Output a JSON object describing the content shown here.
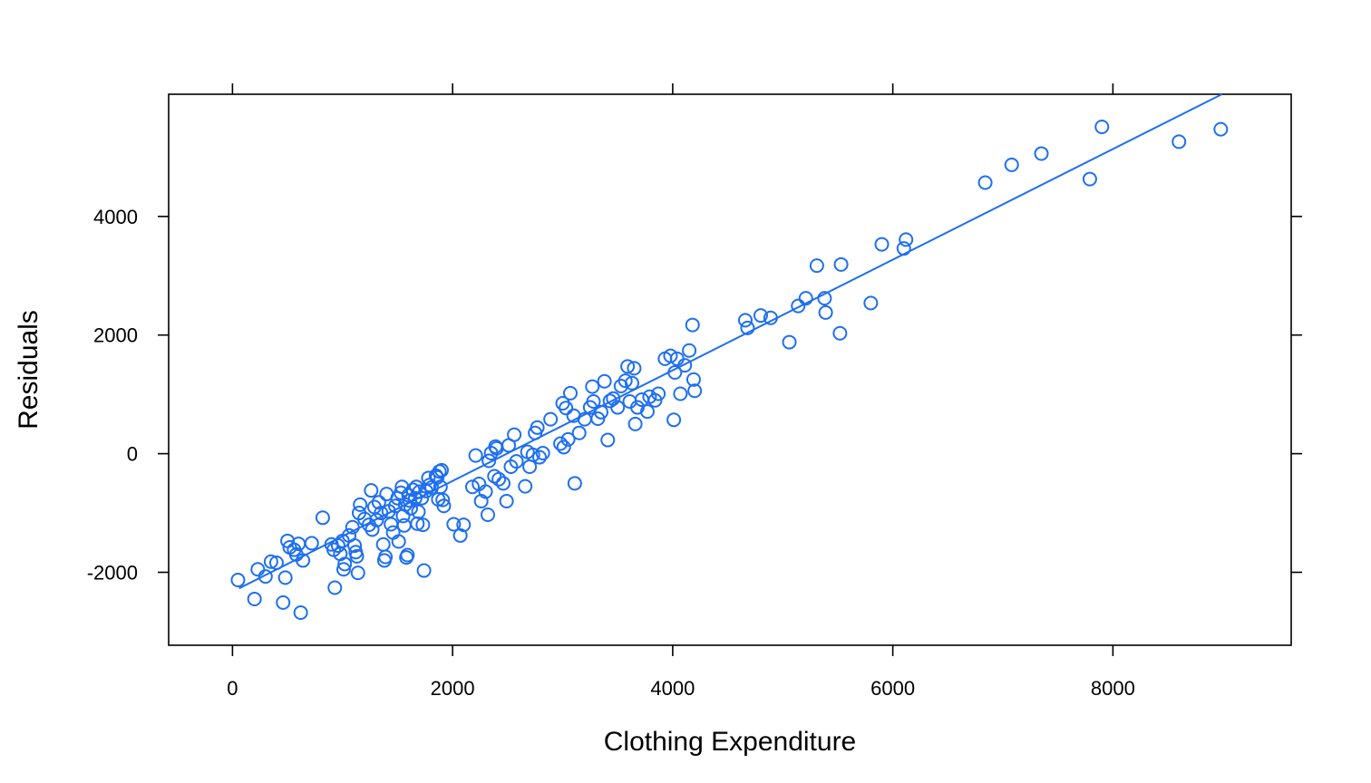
{
  "chart_data": {
    "type": "scatter",
    "title": "",
    "xlabel": "Clothing Expenditure",
    "ylabel": "Residuals",
    "xlim": [
      -580,
      9620
    ],
    "ylim": [
      -3230,
      6060
    ],
    "xticks": [
      0,
      2000,
      4000,
      6000,
      8000
    ],
    "yticks": [
      -2000,
      0,
      2000,
      4000
    ],
    "xtick_labels": [
      "0",
      "2000",
      "4000",
      "6000",
      "8000"
    ],
    "ytick_labels": [
      "-2000",
      "0",
      "2000",
      "4000"
    ],
    "grid": false,
    "legend": "none",
    "point_color": "#1e6ff1",
    "line_color": "#1e6ff1",
    "fit_line": {
      "x": [
        60,
        8990
      ],
      "y": [
        -2270,
        6060
      ]
    },
    "points": [
      [
        50,
        -2130
      ],
      [
        200,
        -2450
      ],
      [
        230,
        -1950
      ],
      [
        300,
        -2070
      ],
      [
        350,
        -1820
      ],
      [
        400,
        -1840
      ],
      [
        460,
        -2510
      ],
      [
        480,
        -2090
      ],
      [
        500,
        -1470
      ],
      [
        520,
        -1580
      ],
      [
        560,
        -1620
      ],
      [
        580,
        -1700
      ],
      [
        600,
        -1520
      ],
      [
        620,
        -2680
      ],
      [
        640,
        -1800
      ],
      [
        720,
        -1510
      ],
      [
        820,
        -1080
      ],
      [
        900,
        -1530
      ],
      [
        920,
        -1620
      ],
      [
        930,
        -2260
      ],
      [
        960,
        -1550
      ],
      [
        980,
        -1690
      ],
      [
        1000,
        -1470
      ],
      [
        1010,
        -1950
      ],
      [
        1020,
        -1860
      ],
      [
        1060,
        -1380
      ],
      [
        1090,
        -1240
      ],
      [
        1110,
        -1550
      ],
      [
        1120,
        -1660
      ],
      [
        1130,
        -1730
      ],
      [
        1140,
        -2010
      ],
      [
        1150,
        -1000
      ],
      [
        1160,
        -860
      ],
      [
        1200,
        -1100
      ],
      [
        1240,
        -1200
      ],
      [
        1260,
        -620
      ],
      [
        1270,
        -1280
      ],
      [
        1290,
        -900
      ],
      [
        1310,
        -1120
      ],
      [
        1330,
        -820
      ],
      [
        1350,
        -1000
      ],
      [
        1370,
        -1530
      ],
      [
        1380,
        -1800
      ],
      [
        1390,
        -1740
      ],
      [
        1400,
        -680
      ],
      [
        1420,
        -970
      ],
      [
        1440,
        -1190
      ],
      [
        1460,
        -1330
      ],
      [
        1480,
        -880
      ],
      [
        1500,
        -750
      ],
      [
        1510,
        -1480
      ],
      [
        1530,
        -660
      ],
      [
        1540,
        -560
      ],
      [
        1550,
        -1050
      ],
      [
        1560,
        -1210
      ],
      [
        1570,
        -860
      ],
      [
        1580,
        -1750
      ],
      [
        1590,
        -1710
      ],
      [
        1600,
        -700
      ],
      [
        1610,
        -790
      ],
      [
        1620,
        -920
      ],
      [
        1640,
        -610
      ],
      [
        1660,
        -750
      ],
      [
        1670,
        -560
      ],
      [
        1680,
        -1180
      ],
      [
        1690,
        -980
      ],
      [
        1700,
        -640
      ],
      [
        1720,
        -750
      ],
      [
        1730,
        -1200
      ],
      [
        1740,
        -1970
      ],
      [
        1760,
        -630
      ],
      [
        1780,
        -410
      ],
      [
        1790,
        -530
      ],
      [
        1810,
        -570
      ],
      [
        1850,
        -370
      ],
      [
        1860,
        -400
      ],
      [
        1870,
        -770
      ],
      [
        1880,
        -300
      ],
      [
        1890,
        -560
      ],
      [
        1900,
        -280
      ],
      [
        1910,
        -780
      ],
      [
        1920,
        -880
      ],
      [
        2010,
        -1190
      ],
      [
        2070,
        -1380
      ],
      [
        2100,
        -1200
      ],
      [
        2180,
        -560
      ],
      [
        2210,
        -30
      ],
      [
        2240,
        -510
      ],
      [
        2260,
        -800
      ],
      [
        2300,
        -640
      ],
      [
        2320,
        -1030
      ],
      [
        2330,
        -120
      ],
      [
        2350,
        10
      ],
      [
        2380,
        -380
      ],
      [
        2390,
        120
      ],
      [
        2400,
        90
      ],
      [
        2420,
        -430
      ],
      [
        2460,
        -500
      ],
      [
        2490,
        -800
      ],
      [
        2510,
        140
      ],
      [
        2530,
        -220
      ],
      [
        2560,
        320
      ],
      [
        2580,
        -130
      ],
      [
        2660,
        -550
      ],
      [
        2680,
        30
      ],
      [
        2700,
        -220
      ],
      [
        2730,
        -20
      ],
      [
        2750,
        350
      ],
      [
        2770,
        440
      ],
      [
        2790,
        -60
      ],
      [
        2820,
        10
      ],
      [
        2890,
        580
      ],
      [
        2980,
        170
      ],
      [
        3000,
        850
      ],
      [
        3010,
        110
      ],
      [
        3030,
        770
      ],
      [
        3050,
        240
      ],
      [
        3070,
        1020
      ],
      [
        3100,
        640
      ],
      [
        3110,
        -500
      ],
      [
        3150,
        350
      ],
      [
        3200,
        580
      ],
      [
        3250,
        780
      ],
      [
        3270,
        1130
      ],
      [
        3280,
        880
      ],
      [
        3320,
        590
      ],
      [
        3350,
        700
      ],
      [
        3380,
        1220
      ],
      [
        3410,
        230
      ],
      [
        3430,
        890
      ],
      [
        3460,
        930
      ],
      [
        3500,
        780
      ],
      [
        3530,
        1140
      ],
      [
        3570,
        1230
      ],
      [
        3590,
        1470
      ],
      [
        3610,
        880
      ],
      [
        3630,
        1190
      ],
      [
        3650,
        1440
      ],
      [
        3660,
        500
      ],
      [
        3680,
        780
      ],
      [
        3720,
        910
      ],
      [
        3770,
        710
      ],
      [
        3790,
        960
      ],
      [
        3840,
        900
      ],
      [
        3870,
        1010
      ],
      [
        3930,
        1600
      ],
      [
        3980,
        1650
      ],
      [
        4010,
        570
      ],
      [
        4020,
        1370
      ],
      [
        4040,
        1600
      ],
      [
        4070,
        1010
      ],
      [
        4110,
        1490
      ],
      [
        4150,
        1740
      ],
      [
        4180,
        2170
      ],
      [
        4190,
        1250
      ],
      [
        4200,
        1060
      ],
      [
        4660,
        2250
      ],
      [
        4680,
        2120
      ],
      [
        4800,
        2330
      ],
      [
        4890,
        2290
      ],
      [
        5060,
        1880
      ],
      [
        5140,
        2490
      ],
      [
        5210,
        2620
      ],
      [
        5310,
        3170
      ],
      [
        5380,
        2620
      ],
      [
        5390,
        2380
      ],
      [
        5520,
        2030
      ],
      [
        5530,
        3190
      ],
      [
        5800,
        2540
      ],
      [
        5900,
        3530
      ],
      [
        6100,
        3460
      ],
      [
        6120,
        3610
      ],
      [
        6840,
        4570
      ],
      [
        7080,
        4870
      ],
      [
        7350,
        5060
      ],
      [
        7790,
        4630
      ],
      [
        7900,
        5510
      ],
      [
        8600,
        5260
      ],
      [
        8980,
        5470
      ]
    ]
  }
}
